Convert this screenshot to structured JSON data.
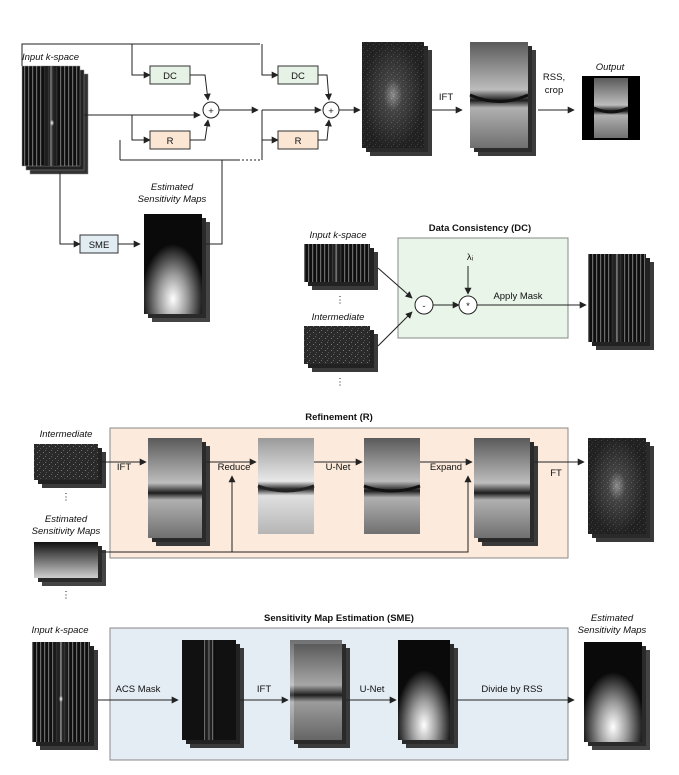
{
  "colors": {
    "dc_fill": "#e6f2e6",
    "r_fill": "#fbe6d4",
    "sme_fill": "#e2ecf3",
    "dc_panel": "#e9f5e9",
    "r_panel": "#fcebdc",
    "sme_panel": "#e4edf4"
  },
  "top": {
    "input_label": "Input k-space",
    "dc_label": "DC",
    "r_label": "R",
    "sum_symbol": "+",
    "sens_label_1": "Estimated",
    "sens_label_2": "Sensitivity Maps",
    "sme_label": "SME",
    "ift_label": "IFT",
    "rss_label_1": "RSS,",
    "rss_label_2": "crop",
    "output_label": "Output"
  },
  "dc_panel": {
    "title": "Data Consistency (DC)",
    "input_label": "Input k-space",
    "intermediate_label": "Intermediate",
    "vdots": "⋮",
    "lambda": "λᵢ",
    "minus": "-",
    "times": "*",
    "apply_mask": "Apply Mask"
  },
  "r_panel": {
    "title": "Refinement (R)",
    "intermediate_label": "Intermediate",
    "sens_label_1": "Estimated",
    "sens_label_2": "Sensitivity Maps",
    "vdots": "⋮",
    "ift": "IFT",
    "reduce": "Reduce",
    "unet": "U-Net",
    "expand": "Expand",
    "ft": "FT"
  },
  "sme_panel": {
    "title": "Sensitivity Map Estimation (SME)",
    "input_label": "Input k-space",
    "acs_mask": "ACS Mask",
    "ift": "IFT",
    "unet": "U-Net",
    "divide": "Divide by RSS",
    "output_label_1": "Estimated",
    "output_label_2": "Sensitivity Maps"
  }
}
